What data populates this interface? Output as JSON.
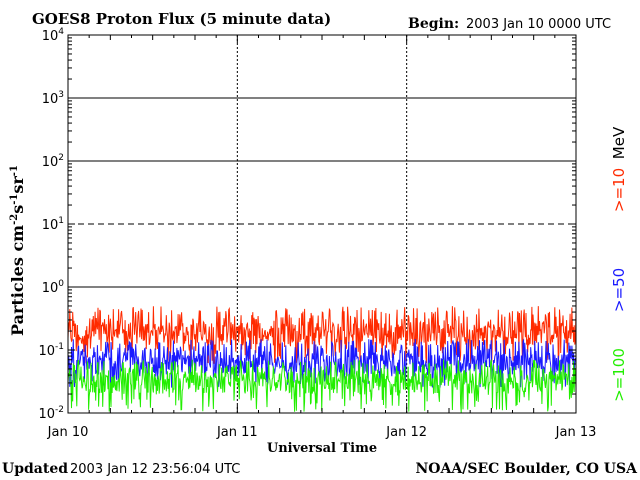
{
  "header": {
    "title": "GOES8 Proton Flux (5 minute data)",
    "begin_label": "Begin:",
    "begin_value": "2003 Jan 10 0000 UTC"
  },
  "footer": {
    "updated_label": "Updated",
    "updated_value": "2003 Jan 12 23:56:04 UTC",
    "credit": "NOAA/SEC Boulder, CO USA"
  },
  "colors": {
    "ge10": "#ff2a00",
    "ge50": "#1a1aff",
    "ge100": "#22ee00",
    "axis": "#000000"
  },
  "chart_data": {
    "type": "line",
    "ylabel_base": "Particles cm",
    "ylabel_parts": [
      "-2",
      "s",
      "-1",
      "sr",
      "-1"
    ],
    "xlabel": "Universal Time",
    "yscale": "log",
    "ylim": [
      0.01,
      10000
    ],
    "xlim_hours": [
      0,
      72
    ],
    "y_ticks": [
      {
        "base": "10",
        "exp": "-2",
        "value": 0.01
      },
      {
        "base": "10",
        "exp": "-1",
        "value": 0.1
      },
      {
        "base": "10",
        "exp": "0",
        "value": 1
      },
      {
        "base": "10",
        "exp": "1",
        "value": 10
      },
      {
        "base": "10",
        "exp": "2",
        "value": 100
      },
      {
        "base": "10",
        "exp": "3",
        "value": 1000
      },
      {
        "base": "10",
        "exp": "4",
        "value": 10000
      }
    ],
    "threshold_solid": [
      1,
      100,
      1000
    ],
    "threshold_dashed": [
      10
    ],
    "x_ticks": [
      "Jan 10",
      "Jan 11",
      "Jan 12",
      "Jan 13"
    ],
    "unit_label": "MeV",
    "series": [
      {
        "name": ">=10",
        "color": "#ff2a00",
        "typical": 0.18,
        "range": [
          0.06,
          0.5
        ]
      },
      {
        "name": ">=50",
        "color": "#1a1aff",
        "typical": 0.06,
        "range": [
          0.025,
          0.15
        ]
      },
      {
        "name": ">=100",
        "color": "#22ee00",
        "typical": 0.03,
        "range": [
          0.01,
          0.07
        ]
      }
    ]
  }
}
